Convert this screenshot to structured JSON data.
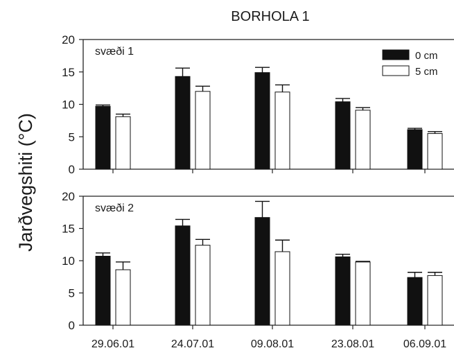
{
  "title": "BORHOLA 1",
  "ylabel": "Jarðvegshiti (°C)",
  "colors": {
    "series_0cm": "#111111",
    "series_5cm": "#ffffff",
    "axis": "#222222"
  },
  "chart_data": [
    {
      "type": "bar",
      "panel_label": "svæði 1",
      "categories": [
        "29.06.01",
        "24.07.01",
        "09.08.01",
        "23.08.01",
        "06.09.01"
      ],
      "ylim": [
        0,
        20
      ],
      "yticks": [
        0,
        5,
        10,
        15,
        20
      ],
      "legend_position": "top-right",
      "series": [
        {
          "name": "0 cm",
          "values": [
            9.7,
            14.3,
            14.9,
            10.4,
            6.1
          ],
          "errors": [
            0.2,
            1.3,
            0.8,
            0.5,
            0.2
          ]
        },
        {
          "name": "5 cm",
          "values": [
            8.1,
            12.0,
            11.9,
            9.1,
            5.5
          ],
          "errors": [
            0.4,
            0.8,
            1.1,
            0.4,
            0.3
          ]
        }
      ]
    },
    {
      "type": "bar",
      "panel_label": "svæði 2",
      "categories": [
        "29.06.01",
        "24.07.01",
        "09.08.01",
        "23.08.01",
        "06.09.01"
      ],
      "ylim": [
        0,
        20
      ],
      "yticks": [
        0,
        5,
        10,
        15,
        20
      ],
      "series": [
        {
          "name": "0 cm",
          "values": [
            10.7,
            15.4,
            16.7,
            10.6,
            7.4
          ],
          "errors": [
            0.5,
            1.0,
            2.5,
            0.4,
            0.8
          ]
        },
        {
          "name": "5 cm",
          "values": [
            8.6,
            12.4,
            11.4,
            9.8,
            7.7
          ],
          "errors": [
            1.2,
            0.9,
            1.8,
            0.1,
            0.5
          ]
        }
      ]
    }
  ]
}
